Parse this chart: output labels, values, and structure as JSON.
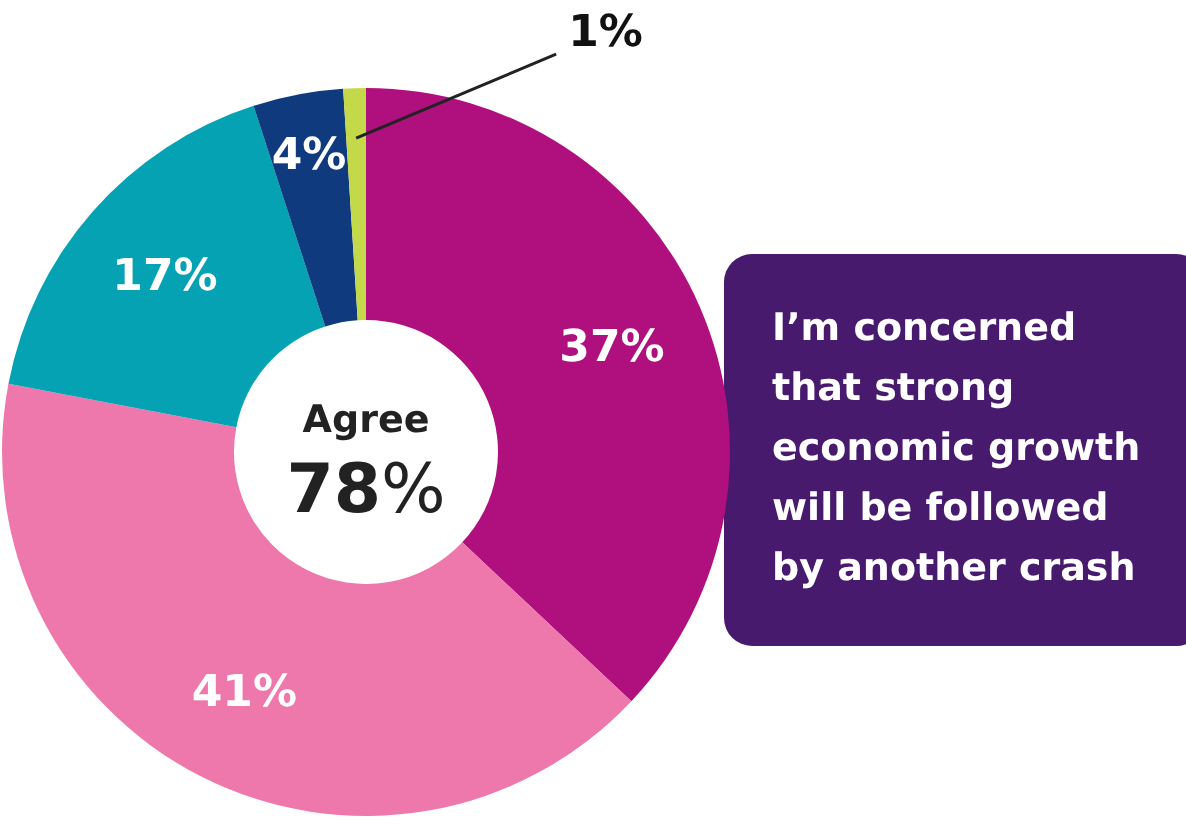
{
  "chart_data": {
    "type": "donut",
    "title": "I’m concerned that strong economic growth will be followed by another crash",
    "categories": [
      null,
      null,
      null,
      null,
      null
    ],
    "values": [
      37,
      41,
      17,
      4,
      1
    ],
    "colors": [
      "#b0107e",
      "#ee78ac",
      "#05a2b4",
      "#0f3b7e",
      "#c4d94a"
    ],
    "value_labels": [
      "37%",
      "41%",
      "17%",
      "4%",
      "1%"
    ],
    "annotations": [
      "Agree",
      "78%"
    ]
  }
}
